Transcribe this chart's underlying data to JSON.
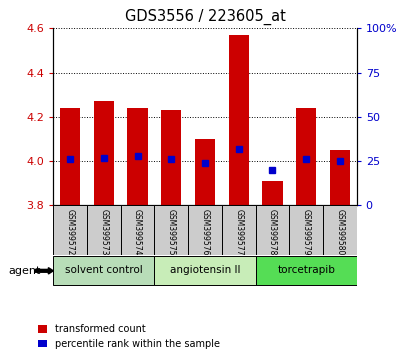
{
  "title": "GDS3556 / 223605_at",
  "samples": [
    "GSM399572",
    "GSM399573",
    "GSM399574",
    "GSM399575",
    "GSM399576",
    "GSM399577",
    "GSM399578",
    "GSM399579",
    "GSM399580"
  ],
  "transformed_counts": [
    4.24,
    4.27,
    4.24,
    4.23,
    4.1,
    4.57,
    3.91,
    4.24,
    4.05
  ],
  "percentile_ranks": [
    26,
    27,
    28,
    26,
    24,
    32,
    20,
    26,
    25
  ],
  "bar_baseline": 3.8,
  "ylim_left": [
    3.8,
    4.6
  ],
  "ylim_right": [
    0,
    100
  ],
  "yticks_left": [
    3.8,
    4.0,
    4.2,
    4.4,
    4.6
  ],
  "yticks_right": [
    0,
    25,
    50,
    75,
    100
  ],
  "bar_color": "#cc0000",
  "dot_color": "#0000cc",
  "groups": [
    {
      "label": "solvent control",
      "start": 0,
      "end": 3,
      "color": "#b8ddb8"
    },
    {
      "label": "angiotensin II",
      "start": 3,
      "end": 6,
      "color": "#c8edb8"
    },
    {
      "label": "torcetrapib",
      "start": 6,
      "end": 9,
      "color": "#55dd55"
    }
  ],
  "agent_label": "agent",
  "legend_tc": "transformed count",
  "legend_pr": "percentile rank within the sample",
  "legend_tc_color": "#cc0000",
  "legend_pr_color": "#0000cc",
  "tick_label_color_left": "#cc0000",
  "tick_label_color_right": "#0000cc",
  "bar_width": 0.6,
  "sample_box_color": "#cccccc"
}
